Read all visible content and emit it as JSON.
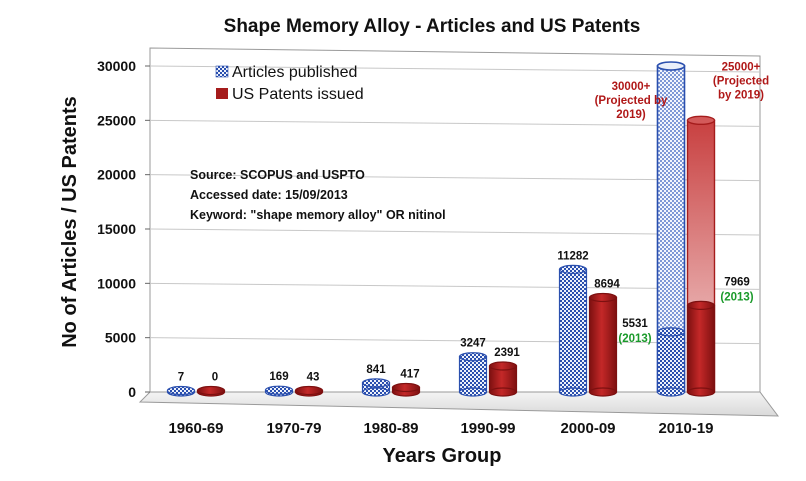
{
  "chart_data": {
    "type": "bar",
    "title": "Shape Memory Alloy - Articles and US Patents",
    "xlabel": "Years Group",
    "ylabel": "No of Articles / US Patents",
    "ylim": [
      0,
      30000
    ],
    "yticks": [
      "0",
      "5000",
      "10000",
      "15000",
      "20000",
      "25000",
      "30000"
    ],
    "categories": [
      "1960-69",
      "1970-79",
      "1980-89",
      "1990-99",
      "2000-09",
      "2010-19"
    ],
    "series": [
      {
        "name": "Articles published",
        "color": "#2a4fae",
        "pattern": "checkered",
        "values": [
          7,
          169,
          841,
          3247,
          11282,
          5531
        ],
        "labels": [
          "7",
          "169",
          "841",
          "3247",
          "11282",
          "5531"
        ],
        "projected": {
          "value": 30000,
          "label": "30000+",
          "note": "(Projected by 2019)"
        }
      },
      {
        "name": "US Patents issued",
        "color": "#a51c1c",
        "pattern": "solid",
        "values": [
          0,
          43,
          417,
          2391,
          8694,
          7969
        ],
        "labels": [
          "0",
          "43",
          "417",
          "2391",
          "8694",
          "7969"
        ],
        "projected": {
          "value": 25000,
          "label": "25000+",
          "note": "(Projected by 2019)"
        }
      }
    ],
    "notes_2013": "(2013)",
    "source_box": {
      "line1": "Source: SCOPUS and USPTO",
      "line2": "Accessed date: 15/09/2013",
      "line3": "Keyword: \"shape memory alloy\" OR nitinol"
    },
    "legend_position": "top-left",
    "grid": true
  }
}
